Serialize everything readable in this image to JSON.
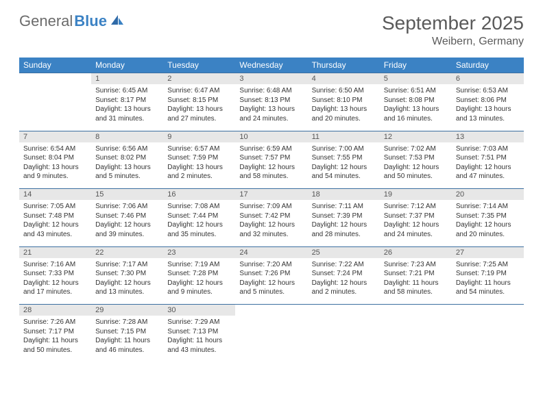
{
  "brand": {
    "part1": "General",
    "part2": "Blue",
    "accent_color": "#3b82c4"
  },
  "title": "September 2025",
  "location": "Weibern, Germany",
  "colors": {
    "header_bg": "#3b82c4",
    "header_text": "#ffffff",
    "daynum_bg": "#e7e7e7",
    "border": "#3b6ea0",
    "text": "#333333"
  },
  "day_headers": [
    "Sunday",
    "Monday",
    "Tuesday",
    "Wednesday",
    "Thursday",
    "Friday",
    "Saturday"
  ],
  "weeks": [
    {
      "nums": [
        "",
        "1",
        "2",
        "3",
        "4",
        "5",
        "6"
      ],
      "cells": [
        null,
        {
          "sunrise": "Sunrise: 6:45 AM",
          "sunset": "Sunset: 8:17 PM",
          "day1": "Daylight: 13 hours",
          "day2": "and 31 minutes."
        },
        {
          "sunrise": "Sunrise: 6:47 AM",
          "sunset": "Sunset: 8:15 PM",
          "day1": "Daylight: 13 hours",
          "day2": "and 27 minutes."
        },
        {
          "sunrise": "Sunrise: 6:48 AM",
          "sunset": "Sunset: 8:13 PM",
          "day1": "Daylight: 13 hours",
          "day2": "and 24 minutes."
        },
        {
          "sunrise": "Sunrise: 6:50 AM",
          "sunset": "Sunset: 8:10 PM",
          "day1": "Daylight: 13 hours",
          "day2": "and 20 minutes."
        },
        {
          "sunrise": "Sunrise: 6:51 AM",
          "sunset": "Sunset: 8:08 PM",
          "day1": "Daylight: 13 hours",
          "day2": "and 16 minutes."
        },
        {
          "sunrise": "Sunrise: 6:53 AM",
          "sunset": "Sunset: 8:06 PM",
          "day1": "Daylight: 13 hours",
          "day2": "and 13 minutes."
        }
      ]
    },
    {
      "nums": [
        "7",
        "8",
        "9",
        "10",
        "11",
        "12",
        "13"
      ],
      "cells": [
        {
          "sunrise": "Sunrise: 6:54 AM",
          "sunset": "Sunset: 8:04 PM",
          "day1": "Daylight: 13 hours",
          "day2": "and 9 minutes."
        },
        {
          "sunrise": "Sunrise: 6:56 AM",
          "sunset": "Sunset: 8:02 PM",
          "day1": "Daylight: 13 hours",
          "day2": "and 5 minutes."
        },
        {
          "sunrise": "Sunrise: 6:57 AM",
          "sunset": "Sunset: 7:59 PM",
          "day1": "Daylight: 13 hours",
          "day2": "and 2 minutes."
        },
        {
          "sunrise": "Sunrise: 6:59 AM",
          "sunset": "Sunset: 7:57 PM",
          "day1": "Daylight: 12 hours",
          "day2": "and 58 minutes."
        },
        {
          "sunrise": "Sunrise: 7:00 AM",
          "sunset": "Sunset: 7:55 PM",
          "day1": "Daylight: 12 hours",
          "day2": "and 54 minutes."
        },
        {
          "sunrise": "Sunrise: 7:02 AM",
          "sunset": "Sunset: 7:53 PM",
          "day1": "Daylight: 12 hours",
          "day2": "and 50 minutes."
        },
        {
          "sunrise": "Sunrise: 7:03 AM",
          "sunset": "Sunset: 7:51 PM",
          "day1": "Daylight: 12 hours",
          "day2": "and 47 minutes."
        }
      ]
    },
    {
      "nums": [
        "14",
        "15",
        "16",
        "17",
        "18",
        "19",
        "20"
      ],
      "cells": [
        {
          "sunrise": "Sunrise: 7:05 AM",
          "sunset": "Sunset: 7:48 PM",
          "day1": "Daylight: 12 hours",
          "day2": "and 43 minutes."
        },
        {
          "sunrise": "Sunrise: 7:06 AM",
          "sunset": "Sunset: 7:46 PM",
          "day1": "Daylight: 12 hours",
          "day2": "and 39 minutes."
        },
        {
          "sunrise": "Sunrise: 7:08 AM",
          "sunset": "Sunset: 7:44 PM",
          "day1": "Daylight: 12 hours",
          "day2": "and 35 minutes."
        },
        {
          "sunrise": "Sunrise: 7:09 AM",
          "sunset": "Sunset: 7:42 PM",
          "day1": "Daylight: 12 hours",
          "day2": "and 32 minutes."
        },
        {
          "sunrise": "Sunrise: 7:11 AM",
          "sunset": "Sunset: 7:39 PM",
          "day1": "Daylight: 12 hours",
          "day2": "and 28 minutes."
        },
        {
          "sunrise": "Sunrise: 7:12 AM",
          "sunset": "Sunset: 7:37 PM",
          "day1": "Daylight: 12 hours",
          "day2": "and 24 minutes."
        },
        {
          "sunrise": "Sunrise: 7:14 AM",
          "sunset": "Sunset: 7:35 PM",
          "day1": "Daylight: 12 hours",
          "day2": "and 20 minutes."
        }
      ]
    },
    {
      "nums": [
        "21",
        "22",
        "23",
        "24",
        "25",
        "26",
        "27"
      ],
      "cells": [
        {
          "sunrise": "Sunrise: 7:16 AM",
          "sunset": "Sunset: 7:33 PM",
          "day1": "Daylight: 12 hours",
          "day2": "and 17 minutes."
        },
        {
          "sunrise": "Sunrise: 7:17 AM",
          "sunset": "Sunset: 7:30 PM",
          "day1": "Daylight: 12 hours",
          "day2": "and 13 minutes."
        },
        {
          "sunrise": "Sunrise: 7:19 AM",
          "sunset": "Sunset: 7:28 PM",
          "day1": "Daylight: 12 hours",
          "day2": "and 9 minutes."
        },
        {
          "sunrise": "Sunrise: 7:20 AM",
          "sunset": "Sunset: 7:26 PM",
          "day1": "Daylight: 12 hours",
          "day2": "and 5 minutes."
        },
        {
          "sunrise": "Sunrise: 7:22 AM",
          "sunset": "Sunset: 7:24 PM",
          "day1": "Daylight: 12 hours",
          "day2": "and 2 minutes."
        },
        {
          "sunrise": "Sunrise: 7:23 AM",
          "sunset": "Sunset: 7:21 PM",
          "day1": "Daylight: 11 hours",
          "day2": "and 58 minutes."
        },
        {
          "sunrise": "Sunrise: 7:25 AM",
          "sunset": "Sunset: 7:19 PM",
          "day1": "Daylight: 11 hours",
          "day2": "and 54 minutes."
        }
      ]
    },
    {
      "nums": [
        "28",
        "29",
        "30",
        "",
        "",
        "",
        ""
      ],
      "cells": [
        {
          "sunrise": "Sunrise: 7:26 AM",
          "sunset": "Sunset: 7:17 PM",
          "day1": "Daylight: 11 hours",
          "day2": "and 50 minutes."
        },
        {
          "sunrise": "Sunrise: 7:28 AM",
          "sunset": "Sunset: 7:15 PM",
          "day1": "Daylight: 11 hours",
          "day2": "and 46 minutes."
        },
        {
          "sunrise": "Sunrise: 7:29 AM",
          "sunset": "Sunset: 7:13 PM",
          "day1": "Daylight: 11 hours",
          "day2": "and 43 minutes."
        },
        null,
        null,
        null,
        null
      ]
    }
  ]
}
